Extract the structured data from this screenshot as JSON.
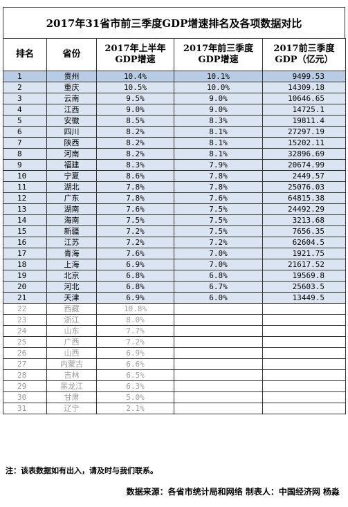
{
  "title": "2017年31省市前三季度GDP增速排名及各项数据对比",
  "headers": {
    "rank": "排名",
    "province": "省份",
    "h1_line1": "2017年上半年",
    "h1_line2": "GDP增速",
    "q3_line1": "2017年前三季度",
    "q3_line2": "GDP增速",
    "gdp_line1": "2017前三季度",
    "gdp_line2": "GDP（亿元）"
  },
  "rows": [
    {
      "rank": "1",
      "province": "贵州",
      "h1": "10.4%",
      "q3": "10.1%",
      "gdp": "9499.53"
    },
    {
      "rank": "2",
      "province": "重庆",
      "h1": "10.5%",
      "q3": "10.0%",
      "gdp": "14309.18"
    },
    {
      "rank": "3",
      "province": "云南",
      "h1": "9.5%",
      "q3": "9.0%",
      "gdp": "10646.65"
    },
    {
      "rank": "4",
      "province": "江西",
      "h1": "9.0%",
      "q3": "9.0%",
      "gdp": "14725.1"
    },
    {
      "rank": "5",
      "province": "安徽",
      "h1": "8.5%",
      "q3": "8.3%",
      "gdp": "19811.4"
    },
    {
      "rank": "6",
      "province": "四川",
      "h1": "8.2%",
      "q3": "8.1%",
      "gdp": "27297.19"
    },
    {
      "rank": "7",
      "province": "陕西",
      "h1": "8.2%",
      "q3": "8.1%",
      "gdp": "15202.11"
    },
    {
      "rank": "8",
      "province": "河南",
      "h1": "8.2%",
      "q3": "8.1%",
      "gdp": "32896.69"
    },
    {
      "rank": "9",
      "province": "福建",
      "h1": "8.3%",
      "q3": "7.9%",
      "gdp": "20674.99"
    },
    {
      "rank": "10",
      "province": "宁夏",
      "h1": "8.6%",
      "q3": "7.8%",
      "gdp": "2449.57"
    },
    {
      "rank": "11",
      "province": "湖北",
      "h1": "7.8%",
      "q3": "7.8%",
      "gdp": "25076.03"
    },
    {
      "rank": "12",
      "province": "广东",
      "h1": "7.8%",
      "q3": "7.6%",
      "gdp": "64815.38"
    },
    {
      "rank": "13",
      "province": "湖南",
      "h1": "7.6%",
      "q3": "7.5%",
      "gdp": "24492.29"
    },
    {
      "rank": "14",
      "province": "海南",
      "h1": "7.5%",
      "q3": "7.5%",
      "gdp": "3213.68"
    },
    {
      "rank": "15",
      "province": "新疆",
      "h1": "7.2%",
      "q3": "7.5%",
      "gdp": "7656.35"
    },
    {
      "rank": "16",
      "province": "江苏",
      "h1": "7.2%",
      "q3": "7.2%",
      "gdp": "62604.5"
    },
    {
      "rank": "17",
      "province": "青海",
      "h1": "7.6%",
      "q3": "7.0%",
      "gdp": "1921.75"
    },
    {
      "rank": "18",
      "province": "上海",
      "h1": "6.9%",
      "q3": "7.0%",
      "gdp": "21617.52"
    },
    {
      "rank": "19",
      "province": "北京",
      "h1": "6.8%",
      "q3": "6.8%",
      "gdp": "19569.8"
    },
    {
      "rank": "20",
      "province": "河北",
      "h1": "6.8%",
      "q3": "6.7%",
      "gdp": "25603.5"
    },
    {
      "rank": "21",
      "province": "天津",
      "h1": "6.9%",
      "q3": "6.0%",
      "gdp": "13449.5"
    },
    {
      "rank": "22",
      "province": "西藏",
      "h1": "10.8%",
      "q3": "",
      "gdp": ""
    },
    {
      "rank": "23",
      "province": "浙江",
      "h1": "8.0%",
      "q3": "",
      "gdp": ""
    },
    {
      "rank": "24",
      "province": "山东",
      "h1": "7.7%",
      "q3": "",
      "gdp": ""
    },
    {
      "rank": "25",
      "province": "广西",
      "h1": "7.2%",
      "q3": "",
      "gdp": ""
    },
    {
      "rank": "26",
      "province": "山西",
      "h1": "6.9%",
      "q3": "",
      "gdp": ""
    },
    {
      "rank": "27",
      "province": "内蒙古",
      "h1": "6.6%",
      "q3": "",
      "gdp": ""
    },
    {
      "rank": "28",
      "province": "吉林",
      "h1": "6.5%",
      "q3": "",
      "gdp": ""
    },
    {
      "rank": "29",
      "province": "黑龙江",
      "h1": "6.3%",
      "q3": "",
      "gdp": ""
    },
    {
      "rank": "30",
      "province": "甘肃",
      "h1": "5.0%",
      "q3": "",
      "gdp": ""
    },
    {
      "rank": "31",
      "province": "辽宁",
      "h1": "2.1%",
      "q3": "",
      "gdp": ""
    }
  ],
  "note": "注：该表数据如有出入，请及时与我们联系。",
  "source": "数据来源：各省市统计局和网络 制表人：中国经济网 杨淼"
}
